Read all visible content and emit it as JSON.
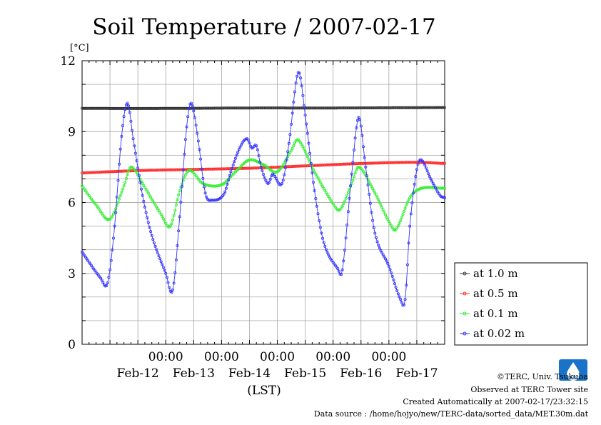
{
  "chart_data": {
    "type": "line",
    "title": "Soil Temperature / 2007-02-17",
    "ylabel": "[°C]",
    "xlabel": "(LST)",
    "ylim": [
      0,
      12
    ],
    "yticks": [
      "0",
      "3",
      "6",
      "9",
      "12"
    ],
    "x_axis": {
      "start": "2007-02-11 12:00",
      "end": "2007-02-17 24:00",
      "time_labels": [
        "00:00",
        "00:00",
        "00:00",
        "00:00",
        "00:00"
      ],
      "date_labels": [
        "Feb-12",
        "Feb-13",
        "Feb-14",
        "Feb-15",
        "Feb-16",
        "Feb-17"
      ]
    },
    "grid": true,
    "legend_position": "right",
    "series": [
      {
        "name": "at 1.0 m",
        "color": "#333333",
        "points": [
          [
            "2007-02-11 12:00",
            9.98
          ],
          [
            "2007-02-13 00:00",
            9.98
          ],
          [
            "2007-02-14 12:00",
            10.0
          ],
          [
            "2007-02-16 00:00",
            10.0
          ],
          [
            "2007-02-17 24:00",
            10.02
          ]
        ]
      },
      {
        "name": "at 0.5 m",
        "color": "#ff2a2a",
        "points": [
          [
            "2007-02-11 12:00",
            7.25
          ],
          [
            "2007-02-12 12:00",
            7.35
          ],
          [
            "2007-02-13 12:00",
            7.4
          ],
          [
            "2007-02-14 12:00",
            7.45
          ],
          [
            "2007-02-15 12:00",
            7.55
          ],
          [
            "2007-02-16 12:00",
            7.65
          ],
          [
            "2007-02-17 12:00",
            7.7
          ],
          [
            "2007-02-17 24:00",
            7.65
          ]
        ]
      },
      {
        "name": "at 0.1 m",
        "color": "#33ee33",
        "points": [
          [
            "2007-02-11 12:00",
            6.7
          ],
          [
            "2007-02-11 18:00",
            5.9
          ],
          [
            "2007-02-12 00:00",
            5.3
          ],
          [
            "2007-02-12 06:00",
            6.7
          ],
          [
            "2007-02-12 09:00",
            7.5
          ],
          [
            "2007-02-12 14:00",
            6.8
          ],
          [
            "2007-02-12 22:00",
            5.5
          ],
          [
            "2007-02-13 02:00",
            5.0
          ],
          [
            "2007-02-13 06:00",
            6.5
          ],
          [
            "2007-02-13 10:00",
            7.35
          ],
          [
            "2007-02-13 16:00",
            6.8
          ],
          [
            "2007-02-14 00:00",
            6.75
          ],
          [
            "2007-02-14 06:00",
            7.3
          ],
          [
            "2007-02-14 12:00",
            7.8
          ],
          [
            "2007-02-14 18:00",
            7.6
          ],
          [
            "2007-02-15 00:00",
            7.3
          ],
          [
            "2007-02-15 06:00",
            8.2
          ],
          [
            "2007-02-15 09:00",
            8.65
          ],
          [
            "2007-02-15 16:00",
            7.3
          ],
          [
            "2007-02-16 00:00",
            5.95
          ],
          [
            "2007-02-16 03:00",
            5.7
          ],
          [
            "2007-02-16 08:00",
            6.8
          ],
          [
            "2007-02-16 11:00",
            7.5
          ],
          [
            "2007-02-16 18:00",
            6.4
          ],
          [
            "2007-02-17 00:00",
            5.2
          ],
          [
            "2007-02-17 03:00",
            4.85
          ],
          [
            "2007-02-17 09:00",
            6.2
          ],
          [
            "2007-02-17 14:00",
            6.6
          ],
          [
            "2007-02-17 24:00",
            6.6
          ]
        ]
      },
      {
        "name": "at 0.02 m",
        "color": "#3333ff",
        "points": [
          [
            "2007-02-11 12:00",
            3.9
          ],
          [
            "2007-02-11 20:00",
            2.8
          ],
          [
            "2007-02-11 23:00",
            2.6
          ],
          [
            "2007-02-12 02:00",
            5.0
          ],
          [
            "2007-02-12 05:00",
            8.8
          ],
          [
            "2007-02-12 07:30",
            10.2
          ],
          [
            "2007-02-12 10:00",
            8.7
          ],
          [
            "2007-02-12 14:00",
            6.3
          ],
          [
            "2007-02-12 18:00",
            4.6
          ],
          [
            "2007-02-13 00:00",
            3.0
          ],
          [
            "2007-02-13 03:00",
            2.3
          ],
          [
            "2007-02-13 06:00",
            5.4
          ],
          [
            "2007-02-13 09:00",
            9.2
          ],
          [
            "2007-02-13 11:00",
            10.2
          ],
          [
            "2007-02-13 14:00",
            8.6
          ],
          [
            "2007-02-13 17:00",
            6.4
          ],
          [
            "2007-02-13 20:00",
            6.1
          ],
          [
            "2007-02-14 01:00",
            6.35
          ],
          [
            "2007-02-14 04:00",
            7.3
          ],
          [
            "2007-02-14 08:00",
            8.35
          ],
          [
            "2007-02-14 11:00",
            8.7
          ],
          [
            "2007-02-14 13:00",
            8.3
          ],
          [
            "2007-02-14 15:00",
            8.4
          ],
          [
            "2007-02-14 17:00",
            7.5
          ],
          [
            "2007-02-14 20:00",
            6.8
          ],
          [
            "2007-02-14 22:00",
            7.2
          ],
          [
            "2007-02-15 02:00",
            6.8
          ],
          [
            "2007-02-15 05:00",
            8.5
          ],
          [
            "2007-02-15 09:00",
            11.5
          ],
          [
            "2007-02-15 12:00",
            9.7
          ],
          [
            "2007-02-15 16:00",
            6.5
          ],
          [
            "2007-02-15 20:00",
            4.3
          ],
          [
            "2007-02-16 02:00",
            3.2
          ],
          [
            "2007-02-16 04:00",
            3.15
          ],
          [
            "2007-02-16 08:00",
            7.2
          ],
          [
            "2007-02-16 11:00",
            9.6
          ],
          [
            "2007-02-16 14:00",
            7.5
          ],
          [
            "2007-02-16 18:00",
            4.7
          ],
          [
            "2007-02-17 00:00",
            3.3
          ],
          [
            "2007-02-17 05:00",
            1.9
          ],
          [
            "2007-02-17 07:00",
            1.9
          ],
          [
            "2007-02-17 09:00",
            5.0
          ],
          [
            "2007-02-17 12:00",
            7.4
          ],
          [
            "2007-02-17 14:00",
            7.8
          ],
          [
            "2007-02-17 18:00",
            7.0
          ],
          [
            "2007-02-17 22:00",
            6.3
          ],
          [
            "2007-02-17 24:00",
            6.2
          ]
        ]
      }
    ]
  },
  "logo": {
    "text": "TERC",
    "color": "#1a73c8"
  },
  "credits": {
    "copyright": "©TERC, Univ. Tsukuba",
    "observed": "Observed at TERC Tower site",
    "created": "Created Automatically at 2007-02-17/23:32:15",
    "source": "Data source : /home/hojyo/new/TERC-data/sorted_data/MET.30m.dat"
  }
}
